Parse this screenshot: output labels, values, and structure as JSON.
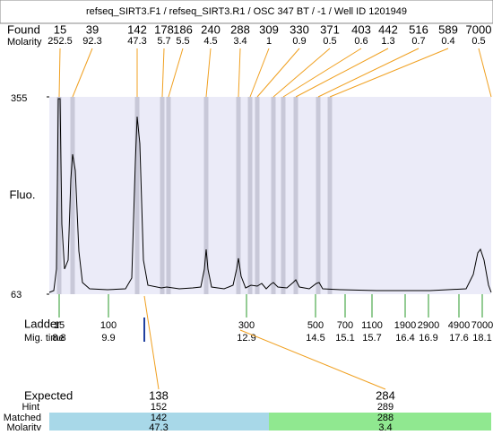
{
  "header": {
    "title": "refseq_SIRT3.F1 / refseq_SIRT3.R1 / OSC 347 BT / -1 / Well ID 1201949"
  },
  "chart_data": {
    "type": "electropherogram",
    "y_label": "Fluo.",
    "ylim": [
      63,
      355
    ],
    "yticks": [
      63,
      355
    ],
    "found": {
      "label": "Found",
      "molarity_label": "Molarity",
      "sizes": [
        15,
        39,
        142,
        178,
        186,
        240,
        288,
        309,
        330,
        371,
        403,
        442,
        516,
        589,
        7000
      ],
      "molarity": [
        252.5,
        92.3,
        47.3,
        5.7,
        5.5,
        4.5,
        3.4,
        1,
        0.9,
        0.5,
        0.6,
        1.3,
        0.7,
        0.4,
        0.5
      ]
    },
    "ladder": {
      "label": "Ladder",
      "mig_time_label": "Mig. time",
      "sizes": [
        15,
        100,
        300,
        500,
        700,
        1100,
        1900,
        2900,
        4900,
        7000
      ],
      "mig_times": [
        8.8,
        9.9,
        12.9,
        14.5,
        15.1,
        15.7,
        16.4,
        16.9,
        17.6,
        18.1
      ]
    },
    "expected": {
      "label": "Expected",
      "hint_label": "Hint",
      "matched_label": "Matched",
      "molarity_label": "Molarity",
      "sizes": [
        138,
        284
      ],
      "hints": [
        152,
        289
      ],
      "matched": [
        142,
        288
      ],
      "molarity": [
        47.3,
        3.4
      ]
    }
  }
}
